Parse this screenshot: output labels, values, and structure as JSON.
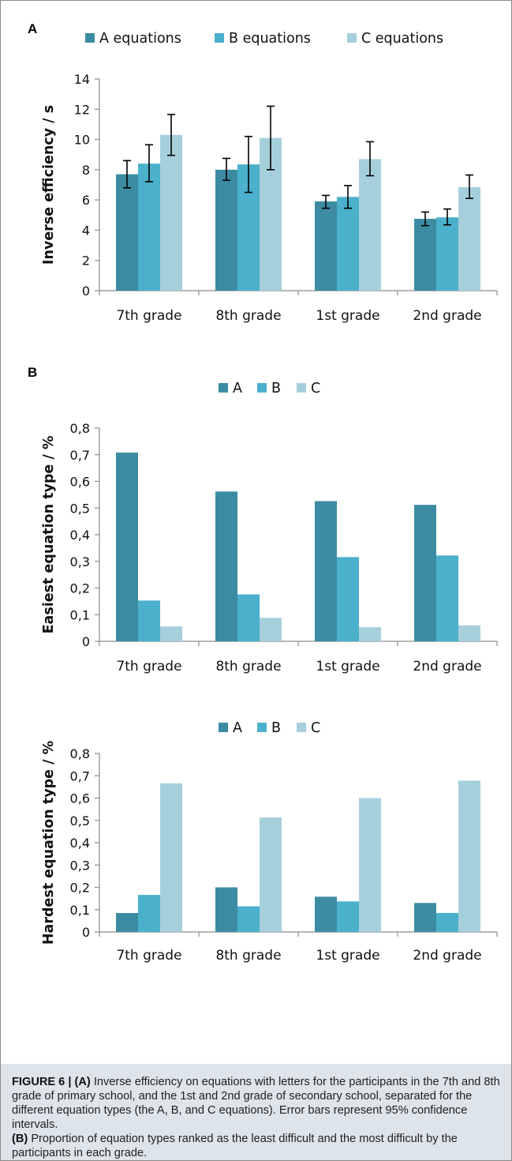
{
  "chart_data": [
    {
      "type": "bar",
      "panel": "A",
      "categories": [
        "7th grade",
        "8th grade",
        "1st grade",
        "2nd grade"
      ],
      "series": [
        {
          "name": "A equations",
          "values": [
            7.7,
            8.0,
            5.9,
            4.75
          ],
          "error_low": [
            6.8,
            7.3,
            5.45,
            4.3
          ],
          "error_high": [
            8.6,
            8.75,
            6.3,
            5.2
          ]
        },
        {
          "name": "B equations",
          "values": [
            8.4,
            8.35,
            6.2,
            4.85
          ],
          "error_low": [
            7.2,
            6.5,
            5.45,
            4.35
          ],
          "error_high": [
            9.65,
            10.2,
            6.95,
            5.4
          ]
        },
        {
          "name": "C equations",
          "values": [
            10.3,
            10.1,
            8.7,
            6.85
          ],
          "error_low": [
            8.95,
            8.0,
            7.6,
            6.1
          ],
          "error_high": [
            11.65,
            12.2,
            9.85,
            7.65
          ]
        }
      ],
      "ylabel": "Inverse efficiency / s",
      "ylim": [
        0,
        14
      ],
      "yticks": [
        "0",
        "2",
        "4",
        "6",
        "8",
        "10",
        "12",
        "14"
      ],
      "legend": "top",
      "grid": false
    },
    {
      "type": "bar",
      "panel": "B",
      "categories": [
        "7th grade",
        "8th grade",
        "1st grade",
        "2nd grade"
      ],
      "series": [
        {
          "name": "A",
          "values": [
            0.708,
            0.562,
            0.526,
            0.512
          ]
        },
        {
          "name": "B",
          "values": [
            0.153,
            0.176,
            0.316,
            0.322
          ]
        },
        {
          "name": "C",
          "values": [
            0.056,
            0.088,
            0.053,
            0.06
          ]
        }
      ],
      "ylabel": "Easiest equation type / %",
      "ylim": [
        0,
        0.8
      ],
      "yticks": [
        "0",
        "0,1",
        "0,2",
        "0,3",
        "0,4",
        "0,5",
        "0,6",
        "0,7",
        "0,8"
      ],
      "legend": "top",
      "grid": false
    },
    {
      "type": "bar",
      "categories": [
        "7th grade",
        "8th grade",
        "1st grade",
        "2nd grade"
      ],
      "series": [
        {
          "name": "A",
          "values": [
            0.085,
            0.2,
            0.158,
            0.13
          ]
        },
        {
          "name": "B",
          "values": [
            0.166,
            0.115,
            0.137,
            0.085
          ]
        },
        {
          "name": "C",
          "values": [
            0.666,
            0.513,
            0.6,
            0.678
          ]
        }
      ],
      "ylabel": "Hardest equation type / %",
      "ylim": [
        0,
        0.8
      ],
      "yticks": [
        "0",
        "0,1",
        "0,2",
        "0,3",
        "0,4",
        "0,5",
        "0,6",
        "0,7",
        "0,8"
      ],
      "legend": "top",
      "grid": false
    }
  ],
  "colors": {
    "A": "#3b8ca3",
    "B": "#4bb0cb",
    "C": "#a6cfdc",
    "axis": "#8c8c8c",
    "caption_bg": "#dde4ea"
  },
  "panels": {
    "a_letter": "A",
    "b_letter": "B"
  },
  "caption": {
    "label": "FIGURE 6 | ",
    "part_a_marker": "(A)",
    "part_a_text": " Inverse efficiency on equations with letters for the participants in the 7th and 8th grade of primary school, and the 1st and 2nd grade of secondary school, separated for the different equation types (the A, B, and C equations). Error bars represent 95% confidence intervals.",
    "part_b_marker": "(B)",
    "part_b_text": " Proportion of equation types ranked as the least difficult and the most difficult by the participants in each grade."
  }
}
